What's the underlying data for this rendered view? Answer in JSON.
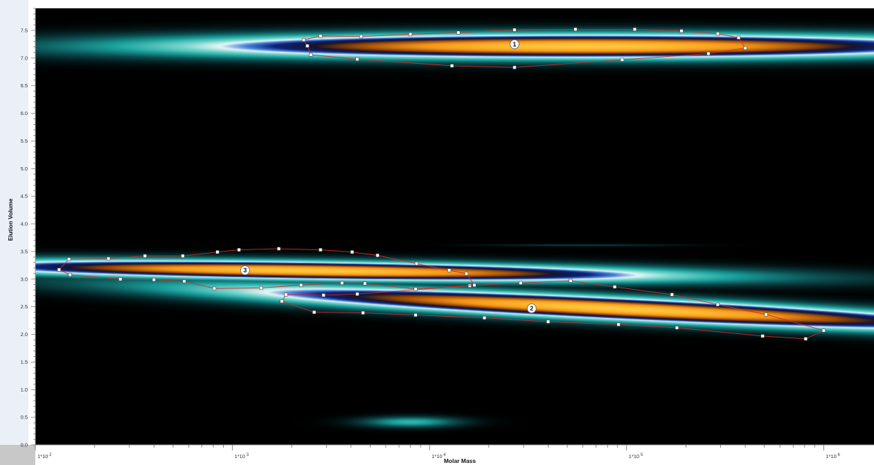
{
  "chart_data": {
    "type": "heatmap",
    "title": "",
    "xlabel": "Molar Mass",
    "ylabel": "Elution Volume",
    "x_scale": "log",
    "xlim": [
      100,
      1800000
    ],
    "ylim": [
      0.0,
      7.9
    ],
    "x_tick_labels": [
      {
        "value": 100,
        "base": "1*10",
        "exp": "2"
      },
      {
        "value": 1000,
        "base": "1*10",
        "exp": "3"
      },
      {
        "value": 10000,
        "base": "1*10",
        "exp": "4"
      },
      {
        "value": 100000,
        "base": "1*10",
        "exp": "5"
      },
      {
        "value": 1000000,
        "base": "1*10",
        "exp": "6"
      }
    ],
    "y_ticks": [
      "0.0",
      "0.5",
      "1.0",
      "1.5",
      "2.0",
      "2.5",
      "3.0",
      "3.5",
      "4.0",
      "4.5",
      "5.0",
      "5.5",
      "6.0",
      "6.5",
      "7.0",
      "7.5"
    ],
    "colormap": [
      "#000000",
      "#0c3d3d",
      "#1aa6a0",
      "#8fe0d8",
      "#ffffff",
      "#3a7bd8",
      "#0a2a8a",
      "#c86a00",
      "#ffb020",
      "#ffd040"
    ],
    "boundary_color": "#d12a2a",
    "blobs": [
      {
        "id": "1",
        "mass": 60000,
        "volume": 7.22,
        "spread_decades": 1.5,
        "spread_volume": 0.16,
        "tilt": 0.0,
        "peak": 1.0
      },
      {
        "id": "2",
        "mass": 90000,
        "volume": 2.47,
        "spread_decades": 1.45,
        "spread_volume": 0.15,
        "tilt": -0.17,
        "peak": 1.0
      },
      {
        "id": "3",
        "mass": 2500,
        "volume": 3.16,
        "spread_decades": 1.35,
        "spread_volume": 0.12,
        "tilt": -0.05,
        "peak": 1.0
      },
      {
        "id": "",
        "mass": 8000,
        "volume": 0.42,
        "spread_decades": 0.18,
        "spread_volume": 0.07,
        "tilt": 0.0,
        "peak": 0.32
      },
      {
        "id": "",
        "mass": 60000,
        "volume": 3.62,
        "spread_decades": 0.35,
        "spread_volume": 0.015,
        "tilt": 0.0,
        "peak": 0.12
      }
    ],
    "regions": [
      {
        "label": "1",
        "label_at": [
          27000,
          7.25
        ],
        "polygon": [
          [
            2300,
            7.33
          ],
          [
            2800,
            7.4
          ],
          [
            4500,
            7.39
          ],
          [
            8000,
            7.43
          ],
          [
            14000,
            7.46
          ],
          [
            27000,
            7.51
          ],
          [
            55000,
            7.52
          ],
          [
            110000,
            7.52
          ],
          [
            190000,
            7.49
          ],
          [
            290000,
            7.44
          ],
          [
            370000,
            7.37
          ],
          [
            400000,
            7.18
          ],
          [
            260000,
            7.08
          ],
          [
            95000,
            6.97
          ],
          [
            27000,
            6.83
          ],
          [
            13000,
            6.86
          ],
          [
            4300,
            6.98
          ],
          [
            2500,
            7.06
          ],
          [
            2400,
            7.22
          ],
          [
            2300,
            7.33
          ]
        ]
      },
      {
        "label": "2",
        "label_at": [
          33000,
          2.47
        ],
        "polygon": [
          [
            1780,
            2.6
          ],
          [
            1870,
            2.72
          ],
          [
            2900,
            2.71
          ],
          [
            4300,
            2.73
          ],
          [
            16000,
            2.88
          ],
          [
            29000,
            2.93
          ],
          [
            52000,
            2.97
          ],
          [
            87000,
            2.86
          ],
          [
            170000,
            2.72
          ],
          [
            290000,
            2.54
          ],
          [
            510000,
            2.36
          ],
          [
            1000000,
            2.07
          ],
          [
            810000,
            1.92
          ],
          [
            490000,
            1.97
          ],
          [
            180000,
            2.12
          ],
          [
            91000,
            2.18
          ],
          [
            40000,
            2.23
          ],
          [
            19000,
            2.3
          ],
          [
            8500,
            2.35
          ],
          [
            4600,
            2.39
          ],
          [
            2600,
            2.4
          ],
          [
            1780,
            2.6
          ]
        ]
      },
      {
        "label": "3",
        "label_at": [
          1160,
          3.16
        ],
        "polygon": [
          [
            132,
            3.17
          ],
          [
            148,
            3.36
          ],
          [
            235,
            3.37
          ],
          [
            360,
            3.42
          ],
          [
            560,
            3.42
          ],
          [
            840,
            3.49
          ],
          [
            1080,
            3.53
          ],
          [
            1720,
            3.55
          ],
          [
            2800,
            3.53
          ],
          [
            4050,
            3.49
          ],
          [
            5450,
            3.43
          ],
          [
            8600,
            3.28
          ],
          [
            12600,
            3.16
          ],
          [
            15400,
            3.1
          ],
          [
            16900,
            2.89
          ],
          [
            8500,
            2.82
          ],
          [
            4700,
            2.92
          ],
          [
            3600,
            2.93
          ],
          [
            2230,
            2.89
          ],
          [
            1400,
            2.84
          ],
          [
            810,
            2.83
          ],
          [
            570,
            2.96
          ],
          [
            400,
            2.99
          ],
          [
            270,
            3.0
          ],
          [
            150,
            3.08
          ],
          [
            132,
            3.17
          ]
        ]
      }
    ]
  }
}
